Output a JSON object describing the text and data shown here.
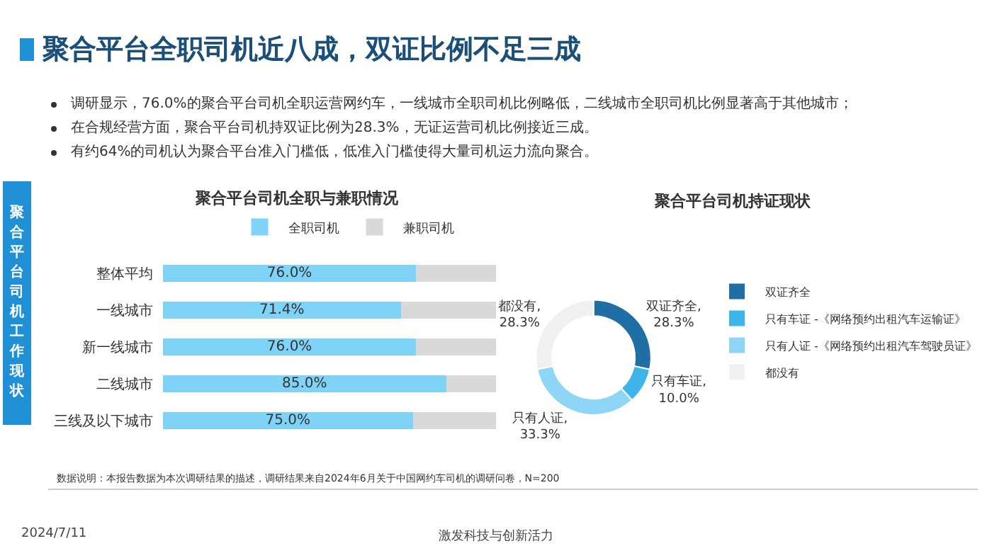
{
  "chart_data": [
    {
      "type": "other",
      "title": "聚合平台全职司机近八成，双证比例不足三成",
      "annotations": [
        "调研显示，76.0%的聚合平台司机全职运营网约车，一线城市全职司机比例略低，二线城市全职司机比例显著高于其他城市；",
        "在合规经营方面，聚合平台司机持双证比例为28.3%，无证运营司机比例接近三成。",
        "有约64%的司机认为聚合平台准入门槛低，低准入门槛使得大量司机运力流向聚合。",
        "聚合平台司机工作现状",
        "数据说明：本报告数据为本次调研结果的描述，调研结果来自2024年6月关于中国网约车司机的调研问卷，N=200",
        "2024/7/11",
        "激发科技与创新活力"
      ]
    },
    {
      "type": "bar",
      "title": "聚合平台司机全职与兼职情况",
      "orientation": "horizontal",
      "stacked": true,
      "categories": [
        "整体平均",
        "一线城市",
        "新一线城市",
        "二线城市",
        "三线及以下城市"
      ],
      "xlim": [
        0,
        100
      ],
      "tick_labels": "y",
      "legend": "top",
      "series": [
        {
          "name": "全职司机",
          "color": "#7fd3f7",
          "values": [
            76.0,
            71.4,
            76.0,
            85.0,
            75.0
          ],
          "value_labels": [
            "76.0%",
            "71.4%",
            "76.0%",
            "85.0%",
            "75.0%"
          ]
        },
        {
          "name": "兼职司机",
          "color": "#d9d9d9",
          "values": [
            24.0,
            28.6,
            24.0,
            15.0,
            25.0
          ]
        }
      ]
    },
    {
      "type": "donut",
      "title": "聚合平台司机持证现状",
      "categories": [
        "双证齐全",
        "只有车证 -《网络预约出租汽车运输证》",
        "只有人证 -《网络预约出租汽车驾驶员证》",
        "都没有"
      ],
      "values": [
        28.3,
        10.0,
        33.3,
        28.3
      ],
      "colors": [
        "#1f6fa5",
        "#3db5ea",
        "#8fd5f6",
        "#f0f0f0"
      ],
      "value_labels": [
        "双证齐全,\n28.3%",
        "只有车证,\n10.0%",
        "只有人证,\n33.3%",
        "都没有,\n28.3%"
      ],
      "legend": "right"
    }
  ]
}
